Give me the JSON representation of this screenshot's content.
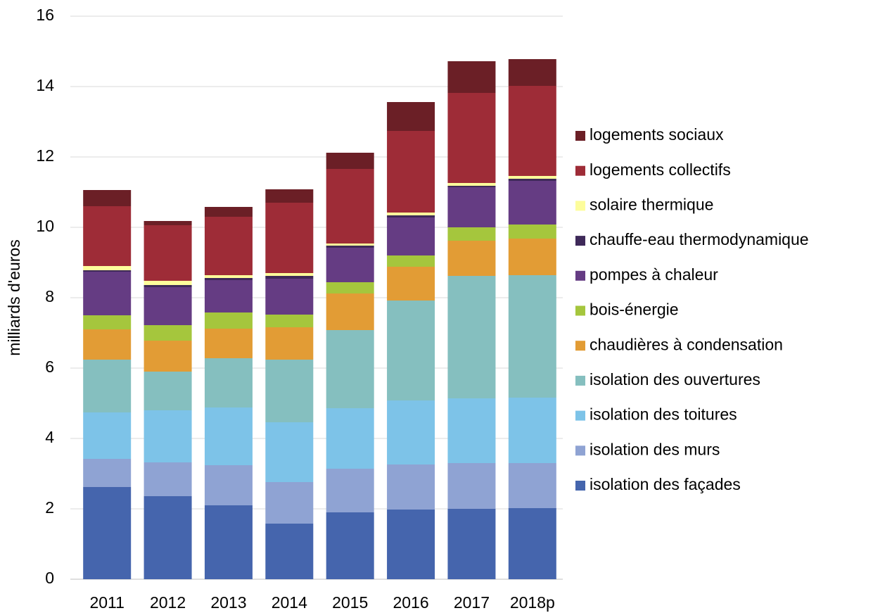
{
  "chart_data": {
    "type": "stacked_bar",
    "y_label": "milliards d'euros",
    "categories": [
      "2011",
      "2012",
      "2013",
      "2014",
      "2015",
      "2016",
      "2017",
      "2018p"
    ],
    "series": [
      {
        "name": "isolation des façades",
        "color": "#4565ad",
        "values": [
          2.62,
          2.36,
          2.1,
          1.58,
          1.9,
          1.98,
          2.0,
          2.02
        ]
      },
      {
        "name": "isolation des murs",
        "color": "#8fa3d3",
        "values": [
          0.8,
          0.96,
          1.14,
          1.18,
          1.24,
          1.28,
          1.3,
          1.28
        ]
      },
      {
        "name": "isolation des toitures",
        "color": "#7dc3e8",
        "values": [
          1.32,
          1.48,
          1.64,
          1.7,
          1.72,
          1.82,
          1.84,
          1.86
        ]
      },
      {
        "name": "isolation des ouvertures",
        "color": "#85bfbf",
        "values": [
          1.5,
          1.1,
          1.4,
          1.78,
          2.22,
          2.84,
          3.48,
          3.48
        ]
      },
      {
        "name": "chaudières à condensation",
        "color": "#e29c35",
        "values": [
          0.86,
          0.88,
          0.84,
          0.92,
          1.04,
          0.96,
          1.0,
          1.04
        ]
      },
      {
        "name": "bois-énergie",
        "color": "#a5c63d",
        "values": [
          0.4,
          0.44,
          0.46,
          0.36,
          0.32,
          0.32,
          0.38,
          0.4
        ]
      },
      {
        "name": "pompes à chaleur",
        "color": "#653c83",
        "values": [
          1.24,
          1.08,
          0.92,
          1.02,
          0.98,
          1.08,
          1.14,
          1.24
        ]
      },
      {
        "name": "chauffe-eau thermodynamique",
        "color": "#3e2959",
        "values": [
          0.04,
          0.06,
          0.06,
          0.08,
          0.06,
          0.06,
          0.04,
          0.06
        ]
      },
      {
        "name": "solaire thermique",
        "color": "#fdfd9b",
        "values": [
          0.12,
          0.12,
          0.08,
          0.08,
          0.06,
          0.08,
          0.08,
          0.08
        ]
      },
      {
        "name": "logements collectifs",
        "color": "#9e2c37",
        "values": [
          1.7,
          1.58,
          1.66,
          2.0,
          2.12,
          2.32,
          2.56,
          2.56
        ]
      },
      {
        "name": "logements sociaux",
        "color": "#6b1f26",
        "values": [
          0.46,
          0.12,
          0.28,
          0.38,
          0.46,
          0.82,
          0.9,
          0.76
        ]
      }
    ],
    "ylim": [
      0,
      16
    ],
    "yticks": [
      0,
      2,
      4,
      6,
      8,
      10,
      12,
      14,
      16
    ],
    "grid": true,
    "legend": "right"
  }
}
